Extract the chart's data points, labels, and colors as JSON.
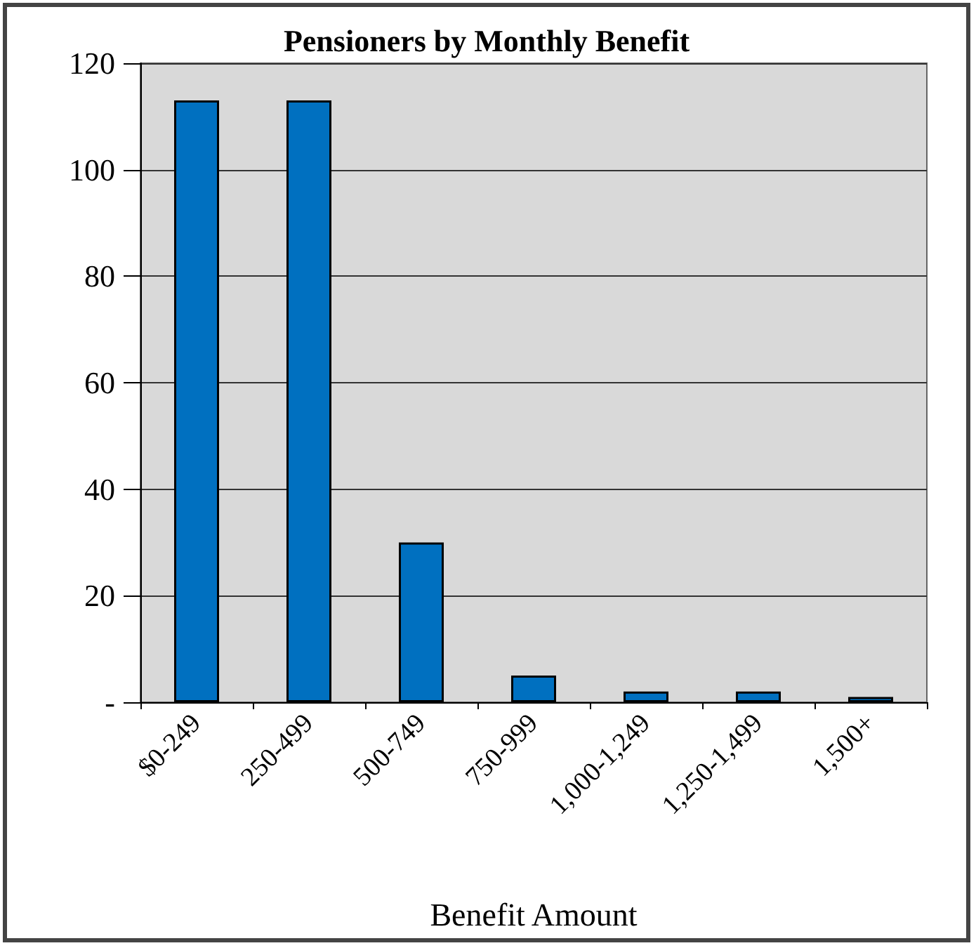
{
  "chart_data": {
    "type": "bar",
    "title": "Pensioners by Monthly Benefit",
    "xlabel": "Benefit Amount",
    "categories": [
      "$0-249",
      "250-499",
      "500-749",
      "750-999",
      "1,000-1,249",
      "1,250-1,499",
      "1,500+"
    ],
    "values": [
      113,
      113,
      30,
      5,
      2,
      2,
      1
    ],
    "color": "#0070c0",
    "ylim": [
      0,
      120
    ],
    "yticks": [
      {
        "value": 0,
        "label": "-"
      },
      20,
      40,
      60,
      80,
      100,
      120
    ],
    "grid": "y"
  }
}
